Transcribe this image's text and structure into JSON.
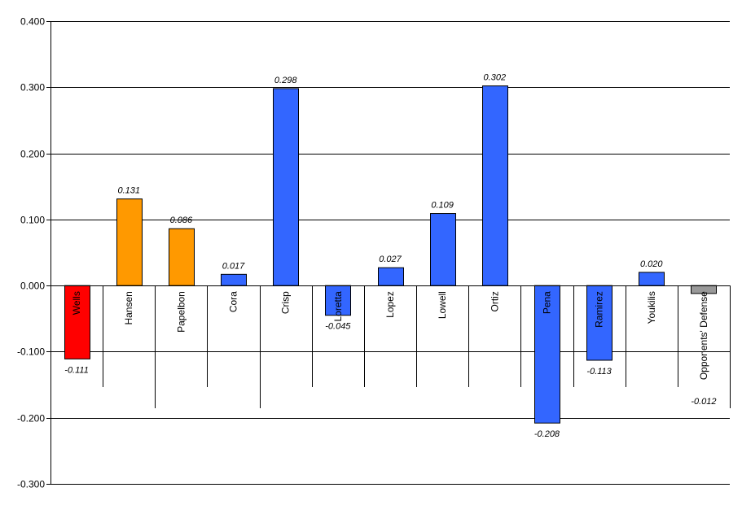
{
  "chart_data": {
    "type": "bar",
    "categories": [
      "Wells",
      "Hansen",
      "Papelbon",
      "Cora",
      "Crisp",
      "Loretta",
      "Lopez",
      "Lowell",
      "Ortiz",
      "Pena",
      "Ramirez",
      "Youkilis",
      "Opponents' Defense"
    ],
    "values": [
      -0.111,
      0.131,
      0.086,
      0.017,
      0.298,
      -0.045,
      0.027,
      0.109,
      0.302,
      -0.208,
      -0.113,
      0.02,
      -0.012
    ],
    "value_labels": [
      "-0.111",
      "0.131",
      "0.086",
      "0.017",
      "0.298",
      "-0.045",
      "0.027",
      "0.109",
      "0.302",
      "-0.208",
      "-0.113",
      "0.020",
      "-0.012"
    ],
    "bar_colors": [
      "#ff0000",
      "#ff9900",
      "#ff9900",
      "#3366ff",
      "#3366ff",
      "#3366ff",
      "#3366ff",
      "#3366ff",
      "#3366ff",
      "#3366ff",
      "#3366ff",
      "#3366ff",
      "#999999"
    ],
    "yticks": [
      -0.3,
      -0.2,
      -0.1,
      0.0,
      0.1,
      0.2,
      0.3,
      0.4
    ],
    "ytick_labels": [
      "-0.300",
      "-0.200",
      "-0.100",
      "0.000",
      "0.100",
      "0.200",
      "0.300",
      "0.400"
    ],
    "ylim": [
      -0.3,
      0.4
    ],
    "grid": true,
    "legend": "none",
    "title": "",
    "xlabel": "",
    "ylabel": ""
  }
}
